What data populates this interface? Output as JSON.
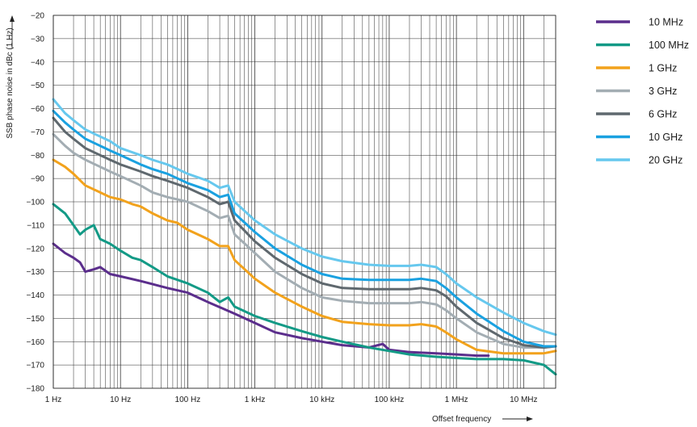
{
  "chart_data": {
    "type": "line",
    "title": "",
    "xlabel": "Offset frequency",
    "ylabel": "SSB phase noise in dBc (1 Hz)",
    "x_scale": "log",
    "x_unit": "Hz",
    "xlim": [
      1,
      30000000
    ],
    "ylim": [
      -180,
      -20
    ],
    "grid": true,
    "legend_position": "right",
    "x_ticks": [
      {
        "value": 1,
        "label": "1 Hz"
      },
      {
        "value": 10,
        "label": "10 Hz"
      },
      {
        "value": 100,
        "label": "100 Hz"
      },
      {
        "value": 1000,
        "label": "1 kHz"
      },
      {
        "value": 10000,
        "label": "10 kHz"
      },
      {
        "value": 100000,
        "label": "100 kHz"
      },
      {
        "value": 1000000,
        "label": "1 MHz"
      },
      {
        "value": 10000000,
        "label": "10 MHz"
      }
    ],
    "y_ticks": [
      {
        "value": -20,
        "label": "−20"
      },
      {
        "value": -30,
        "label": "−30"
      },
      {
        "value": -40,
        "label": "−40"
      },
      {
        "value": -50,
        "label": "−50"
      },
      {
        "value": -60,
        "label": "−60"
      },
      {
        "value": -70,
        "label": "−70"
      },
      {
        "value": -80,
        "label": "−80"
      },
      {
        "value": -90,
        "label": "−90"
      },
      {
        "value": -100,
        "label": "−100"
      },
      {
        "value": -110,
        "label": "−110"
      },
      {
        "value": -120,
        "label": "−120"
      },
      {
        "value": -130,
        "label": "−130"
      },
      {
        "value": -140,
        "label": "−140"
      },
      {
        "value": -150,
        "label": "−150"
      },
      {
        "value": -160,
        "label": "−160"
      },
      {
        "value": -170,
        "label": "−170"
      },
      {
        "value": -180,
        "label": "−180"
      }
    ],
    "series": [
      {
        "name": "10 MHz",
        "color": "#5b2e8c",
        "x": [
          1,
          1.5,
          2,
          2.5,
          3,
          4,
          5,
          7,
          10,
          20,
          50,
          100,
          200,
          500,
          1000,
          2000,
          5000,
          10000,
          20000,
          50000,
          80000,
          100000,
          200000,
          500000,
          1000000,
          2000000,
          3000000
        ],
        "y": [
          -118,
          -122,
          -124,
          -126,
          -130,
          -129,
          -128,
          -131,
          -132,
          -134,
          -137,
          -139,
          -143,
          -148,
          -152,
          -156,
          -158.5,
          -160,
          -161.5,
          -162.5,
          -161,
          -163.5,
          -164.5,
          -165,
          -165.5,
          -166,
          -166
        ]
      },
      {
        "name": "100 MHz",
        "color": "#139a86",
        "x": [
          1,
          1.5,
          2,
          2.5,
          3,
          4,
          5,
          7,
          10,
          15,
          20,
          30,
          50,
          100,
          200,
          300,
          400,
          500,
          1000,
          2000,
          5000,
          10000,
          20000,
          50000,
          100000,
          200000,
          500000,
          1000000,
          2000000,
          5000000,
          10000000,
          20000000,
          30000000
        ],
        "y": [
          -101,
          -105,
          -110,
          -114,
          -112,
          -110,
          -116,
          -118,
          -121,
          -124,
          -125,
          -128,
          -132,
          -135,
          -139,
          -143,
          -141,
          -145,
          -149,
          -152,
          -155.5,
          -158,
          -160,
          -162.5,
          -164,
          -165.5,
          -166.5,
          -167,
          -167.5,
          -167.5,
          -168,
          -170,
          -174
        ]
      },
      {
        "name": "1 GHz",
        "color": "#f2a21c",
        "x": [
          1,
          1.5,
          2,
          3,
          5,
          7,
          10,
          15,
          20,
          30,
          50,
          70,
          100,
          200,
          300,
          400,
          500,
          1000,
          2000,
          5000,
          10000,
          20000,
          50000,
          100000,
          200000,
          300000,
          500000,
          700000,
          1000000,
          2000000,
          5000000,
          10000000,
          20000000,
          30000000
        ],
        "y": [
          -82,
          -85,
          -88,
          -93,
          -96,
          -98,
          -99,
          -101,
          -102,
          -105,
          -108,
          -109,
          -112,
          -116,
          -119,
          -119,
          -125,
          -133,
          -139,
          -145,
          -149,
          -151.5,
          -152.5,
          -153,
          -153,
          -152.5,
          -153.5,
          -156,
          -159,
          -163.5,
          -165,
          -165,
          -165,
          -164
        ]
      },
      {
        "name": "3 GHz",
        "color": "#a3adb3",
        "x": [
          1,
          1.5,
          2,
          3,
          5,
          7,
          10,
          20,
          30,
          50,
          100,
          200,
          300,
          400,
          500,
          1000,
          2000,
          5000,
          10000,
          20000,
          50000,
          100000,
          200000,
          300000,
          500000,
          700000,
          1000000,
          2000000,
          5000000,
          10000000,
          20000000,
          30000000
        ],
        "y": [
          -71,
          -76,
          -79,
          -82,
          -85,
          -87,
          -89,
          -93,
          -96,
          -98,
          -100,
          -104,
          -107,
          -106,
          -114,
          -122,
          -130,
          -137,
          -141,
          -142.5,
          -143.5,
          -143.5,
          -143.5,
          -143,
          -144,
          -146.5,
          -150,
          -156,
          -161,
          -162.5,
          -162.5,
          -162
        ]
      },
      {
        "name": "6 GHz",
        "color": "#5f686e",
        "x": [
          1,
          1.5,
          2,
          3,
          5,
          7,
          10,
          20,
          30,
          50,
          100,
          200,
          300,
          400,
          500,
          1000,
          2000,
          5000,
          10000,
          20000,
          50000,
          100000,
          200000,
          300000,
          500000,
          700000,
          1000000,
          2000000,
          5000000,
          10000000,
          20000000,
          30000000
        ],
        "y": [
          -64,
          -70,
          -73,
          -77,
          -80,
          -82,
          -84,
          -87,
          -89,
          -91,
          -94,
          -98,
          -101,
          -100,
          -108,
          -117,
          -124,
          -131,
          -135,
          -137,
          -137.5,
          -137.5,
          -137.5,
          -137,
          -138,
          -140.5,
          -145,
          -152,
          -158.5,
          -161.5,
          -162.5,
          -162
        ]
      },
      {
        "name": "10 GHz",
        "color": "#1aa1e0",
        "x": [
          1,
          1.5,
          2,
          3,
          5,
          7,
          10,
          20,
          30,
          50,
          100,
          200,
          300,
          400,
          500,
          1000,
          2000,
          5000,
          10000,
          20000,
          50000,
          100000,
          200000,
          300000,
          500000,
          700000,
          1000000,
          2000000,
          5000000,
          10000000,
          20000000,
          30000000
        ],
        "y": [
          -61,
          -66,
          -69,
          -73,
          -76,
          -78,
          -80,
          -84,
          -86,
          -88,
          -92,
          -95,
          -98,
          -97,
          -105,
          -113,
          -120,
          -127,
          -131,
          -133,
          -133.5,
          -133.5,
          -133.5,
          -133,
          -134,
          -137,
          -141,
          -148,
          -155.5,
          -160,
          -162,
          -162
        ]
      },
      {
        "name": "20 GHz",
        "color": "#66c8ee",
        "x": [
          1,
          1.5,
          2,
          3,
          5,
          7,
          10,
          20,
          30,
          50,
          100,
          200,
          300,
          400,
          500,
          1000,
          2000,
          5000,
          10000,
          20000,
          50000,
          100000,
          200000,
          300000,
          500000,
          700000,
          1000000,
          2000000,
          5000000,
          10000000,
          20000000,
          30000000
        ],
        "y": [
          -56,
          -62,
          -65,
          -69,
          -72,
          -74,
          -77,
          -80,
          -82,
          -84,
          -88,
          -91,
          -94,
          -93,
          -100,
          -108,
          -114,
          -120,
          -123.5,
          -125.5,
          -127,
          -127.5,
          -127.5,
          -127,
          -128,
          -131,
          -135,
          -141,
          -147.5,
          -152,
          -155.5,
          -157
        ]
      }
    ]
  }
}
